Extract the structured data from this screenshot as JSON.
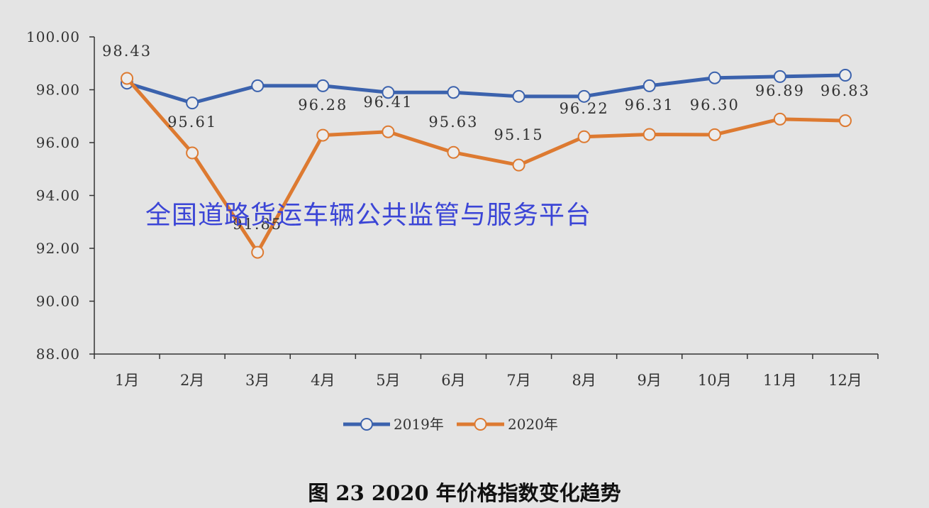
{
  "chart_data": {
    "type": "line",
    "categories": [
      "1月",
      "2月",
      "3月",
      "4月",
      "5月",
      "6月",
      "7月",
      "8月",
      "9月",
      "10月",
      "11月",
      "12月"
    ],
    "y_ticks": [
      "88.00",
      "90.00",
      "92.00",
      "94.00",
      "96.00",
      "98.00",
      "100.00"
    ],
    "ylim": [
      88,
      100
    ],
    "series": [
      {
        "name": "2019年",
        "color": "#3b62ad",
        "values": [
          98.25,
          97.5,
          98.15,
          98.15,
          97.9,
          97.9,
          97.75,
          97.75,
          98.15,
          98.45,
          98.5,
          98.55
        ],
        "labels": []
      },
      {
        "name": "2020年",
        "color": "#dd7a31",
        "values": [
          98.43,
          95.61,
          91.85,
          96.28,
          96.41,
          95.63,
          95.15,
          96.22,
          96.31,
          96.3,
          96.89,
          96.83
        ],
        "labels": [
          "98.43",
          "95.61",
          "91.85",
          "96.28",
          "96.41",
          "95.63",
          "95.15",
          "96.22",
          "96.31",
          "96.30",
          "96.89",
          "96.83"
        ]
      }
    ],
    "legend_position": "bottom",
    "grid": false,
    "watermark": "全国道路货运车辆公共监管与服务平台",
    "caption": "图 23  2020 年价格指数变化趋势"
  }
}
